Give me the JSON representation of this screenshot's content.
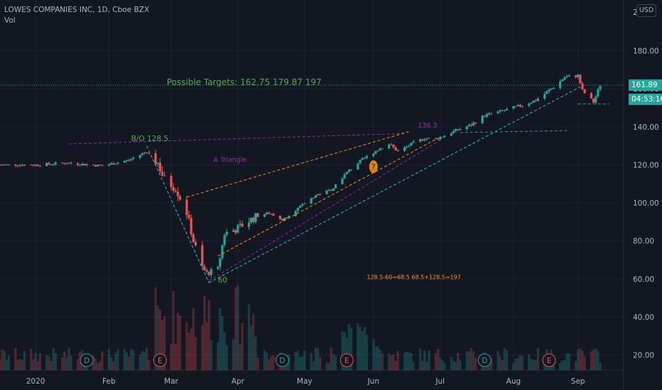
{
  "header": {
    "title": "LOWES COMPANIES INC, 1D, Cboe BZX",
    "volume_label": "Vol"
  },
  "currency_button": "USD",
  "price_label": "161.89",
  "countdown_label": "04:53:16",
  "colors": {
    "background": "#131722",
    "up": "#26a69a",
    "down": "#ef5350",
    "annotation_green": "#4caf50",
    "purple": "#9c27b0",
    "orange": "#ff9800",
    "cyan": "#26c6da",
    "grid": "#1e222d"
  },
  "chart_data": {
    "type": "candlestick",
    "title": "LOWES COMPANIES INC, 1D, Cboe BZX",
    "ylim": [
      12,
      200
    ],
    "y_ticks": [
      "20.00",
      "40.00",
      "60.00",
      "80.00",
      "100.00",
      "120.00",
      "140.00",
      "160.00",
      "180.00"
    ],
    "y_top_partial_label": "2",
    "x_ticks": [
      "2020",
      "Feb",
      "Mar",
      "Apr",
      "May",
      "Jun",
      "Jul",
      "Aug",
      "Sep"
    ],
    "x_tick_dates": [
      "2020-01-01",
      "2020-02-03",
      "2020-03-02",
      "2020-04-01",
      "2020-05-01",
      "2020-06-01",
      "2020-07-01",
      "2020-08-03",
      "2020-09-01"
    ],
    "date_range": [
      "2019-12-16",
      "2020-09-11"
    ],
    "current_price": 161.89,
    "price_path": [
      [
        "2019-12-16",
        120
      ],
      [
        "2020-01-02",
        120
      ],
      [
        "2020-01-15",
        121
      ],
      [
        "2020-01-31",
        119.5
      ],
      [
        "2020-02-12",
        122.5
      ],
      [
        "2020-02-20",
        127
      ],
      [
        "2020-02-25",
        121
      ],
      [
        "2020-02-28",
        112
      ],
      [
        "2020-03-04",
        108
      ],
      [
        "2020-03-09",
        95
      ],
      [
        "2020-03-12",
        80
      ],
      [
        "2020-03-16",
        66
      ],
      [
        "2020-03-18",
        63
      ],
      [
        "2020-03-23",
        65
      ],
      [
        "2020-03-26",
        84
      ],
      [
        "2020-03-31",
        86
      ],
      [
        "2020-04-08",
        92
      ],
      [
        "2020-04-14",
        95
      ],
      [
        "2020-04-21",
        91
      ],
      [
        "2020-04-29",
        98
      ],
      [
        "2020-05-06",
        104
      ],
      [
        "2020-05-13",
        107
      ],
      [
        "2020-05-20",
        116
      ],
      [
        "2020-05-26",
        122
      ],
      [
        "2020-06-03",
        128
      ],
      [
        "2020-06-08",
        131
      ],
      [
        "2020-06-12",
        127
      ],
      [
        "2020-06-19",
        131.5
      ],
      [
        "2020-06-24",
        134
      ],
      [
        "2020-06-29",
        133.5
      ],
      [
        "2020-07-08",
        138
      ],
      [
        "2020-07-15",
        141
      ],
      [
        "2020-07-21",
        146
      ],
      [
        "2020-07-28",
        148
      ],
      [
        "2020-08-06",
        151
      ],
      [
        "2020-08-13",
        154
      ],
      [
        "2020-08-20",
        160
      ],
      [
        "2020-08-26",
        166
      ],
      [
        "2020-09-01",
        167
      ],
      [
        "2020-09-03",
        159
      ],
      [
        "2020-09-08",
        153
      ],
      [
        "2020-09-11",
        161.89
      ]
    ],
    "trendlines": [
      {
        "color": "#9c27b0",
        "from": [
          "2020-01-16",
          131
        ],
        "to": [
          "2020-06-15",
          136.5
        ]
      },
      {
        "color": "#26c6da",
        "from": [
          "2020-02-20",
          130
        ],
        "to": [
          "2020-03-19",
          58
        ]
      },
      {
        "color": "#26c6da",
        "from": [
          "2020-03-19",
          58
        ],
        "to": [
          "2020-09-02",
          161
        ]
      },
      {
        "color": "#ff9800",
        "from": [
          "2020-03-09",
          103
        ],
        "to": [
          "2020-06-17",
          137.5
        ]
      },
      {
        "color": "#ff9800",
        "from": [
          "2020-03-23",
          72
        ],
        "to": [
          "2020-06-30",
          134
        ]
      },
      {
        "color": "#9c27b0",
        "from": [
          "2020-03-19",
          59
        ],
        "to": [
          "2020-07-01",
          133
        ]
      },
      {
        "color": "#26a69a",
        "from": [
          "2020-07-10",
          137
        ],
        "to": [
          "2020-08-27",
          138
        ]
      },
      {
        "color": "#26a69a",
        "from": [
          "2020-09-01",
          152
        ],
        "to": [
          "2020-09-15",
          152
        ]
      }
    ],
    "annotations": [
      {
        "text": "Possible Targets: 162.75   179.87   197",
        "date": "2020-02-29",
        "price": 162,
        "color": "#4caf50",
        "size": 12
      },
      {
        "text": "B/O 128.5",
        "date": "2020-02-13",
        "price": 132.5,
        "color": "#4caf50",
        "size": 10.5
      },
      {
        "text": "A Triangle",
        "date": "2020-03-21",
        "price": 121.5,
        "color": "#9c27b0",
        "size": 9.5
      },
      {
        "text": "136.3",
        "date": "2020-06-21",
        "price": 139.5,
        "color": "#9c27b0",
        "size": 9.5
      },
      {
        "text": "60",
        "date": "2020-03-23",
        "price": 58,
        "color": "#4caf50",
        "size": 10.5
      },
      {
        "text": "128.5-60=68.5   68.5+128.5=197",
        "date": "2020-05-29",
        "price": 60,
        "color": "#ff9800",
        "size": 8
      }
    ],
    "event_markers": [
      {
        "letter": "D",
        "date": "2020-01-24",
        "color": "#26a69a"
      },
      {
        "letter": "E",
        "date": "2020-02-26",
        "color": "#ef5350"
      },
      {
        "letter": "D",
        "date": "2020-04-21",
        "color": "#26a69a"
      },
      {
        "letter": "E",
        "date": "2020-05-20",
        "color": "#ef5350"
      },
      {
        "letter": "D",
        "date": "2020-07-21",
        "color": "#26a69a"
      },
      {
        "letter": "E",
        "date": "2020-08-19",
        "color": "#ef5350"
      }
    ],
    "idea_marker": {
      "symbol": "?",
      "date": "2020-06-01",
      "price": 119,
      "color": "#ff9800"
    }
  }
}
